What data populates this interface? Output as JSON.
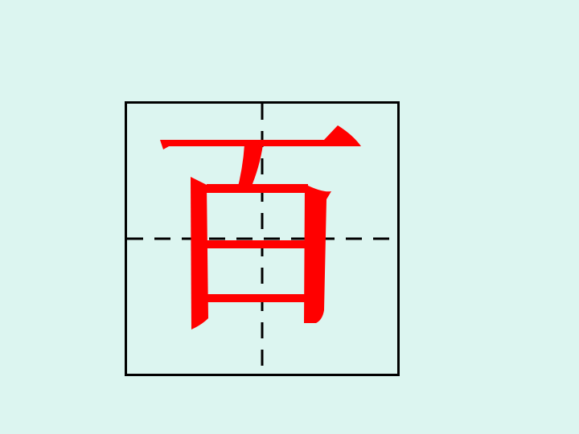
{
  "slide": {
    "background_color": "#dcf5f0"
  },
  "practice_grid": {
    "border_color": "#000000",
    "guide_color": "#000000",
    "character": "百",
    "character_color": "#ff0000"
  }
}
